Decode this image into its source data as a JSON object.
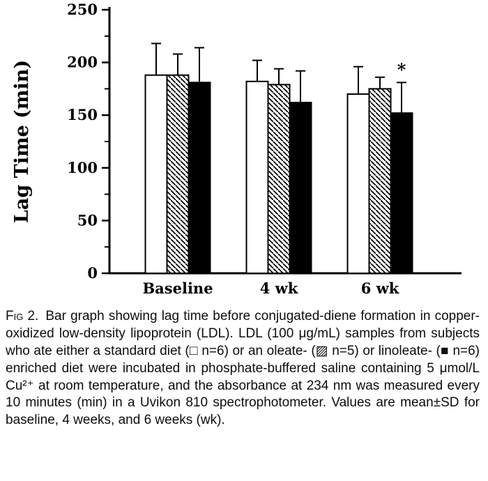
{
  "chart_data": {
    "type": "bar",
    "title": "",
    "xlabel": "",
    "ylabel": "Lag Time (min)",
    "ylim": [
      0,
      250
    ],
    "yticks": [
      0,
      50,
      100,
      150,
      200,
      250
    ],
    "grid": false,
    "legend_position": "none",
    "categories": [
      "Baseline",
      "4 wk",
      "6 wk"
    ],
    "series": [
      {
        "name": "standard diet (n=6)",
        "fill": "white",
        "values": [
          188,
          182,
          170
        ],
        "sd": [
          30,
          20,
          26
        ]
      },
      {
        "name": "oleate-enriched diet (n=5)",
        "fill": "hatched",
        "values": [
          188,
          179,
          175
        ],
        "sd": [
          20,
          15,
          11
        ]
      },
      {
        "name": "linoleate-enriched diet (n=6)",
        "fill": "black",
        "values": [
          181,
          162,
          152
        ],
        "sd": [
          33,
          30,
          29
        ]
      }
    ],
    "error_bars": "mean+SD, cap on top",
    "annotations": [
      {
        "text": "*",
        "category": "6 wk",
        "series": 2
      }
    ]
  },
  "caption": {
    "label": "Fig 2.",
    "text": "Bar graph showing lag time before conjugated-diene formation in copper-oxidized low-density lipoprotein (LDL). LDL (100 μg/mL) samples from subjects who ate either a standard diet (□ n=6) or an oleate- (▨ n=5) or linoleate- (■ n=6) enriched diet were incubated in phosphate-buffered saline containing 5 μmol/L Cu²⁺ at room temperature, and the absorbance at 234 nm was measured every 10 minutes (min) in a Uvikon 810 spectrophotometer. Values are mean±SD for baseline, 4 weeks, and 6 weeks (wk)."
  }
}
